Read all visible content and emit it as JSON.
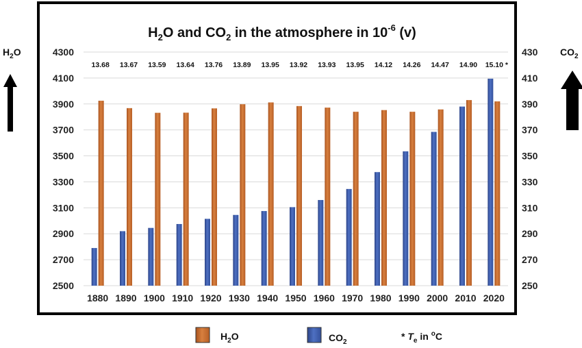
{
  "chart_data": {
    "type": "bar",
    "title": {
      "p1": "H",
      "s1": "2",
      "p2": "O and CO",
      "s2": "2",
      "p3": " in the atmosphere in 10",
      "sup": "-6",
      "p4": " (v)"
    },
    "left_axis": {
      "label_main": "H",
      "label_sub": "2",
      "label_tail": "O",
      "ylim": [
        2500,
        4300
      ],
      "ticks": [
        "2500",
        "2700",
        "2900",
        "3100",
        "3300",
        "3500",
        "3700",
        "3900",
        "4100",
        "4300"
      ]
    },
    "right_axis": {
      "label_main": "CO",
      "label_sub": "2",
      "ylim": [
        250,
        430
      ],
      "ticks": [
        "250",
        "270",
        "290",
        "310",
        "330",
        "350",
        "370",
        "390",
        "410",
        "430"
      ]
    },
    "categories": [
      "1880",
      "1890",
      "1900",
      "1910",
      "1920",
      "1930",
      "1940",
      "1950",
      "1960",
      "1970",
      "1980",
      "1990",
      "2000",
      "2010",
      "2020"
    ],
    "temperatures": [
      "13.68",
      "13.67",
      "13.59",
      "13.64",
      "13.76",
      "13.89",
      "13.95",
      "13.92",
      "13.93",
      "13.95",
      "14.12",
      "14.26",
      "14.47",
      "14.90",
      "15.10 *"
    ],
    "series": [
      {
        "name_main": "H",
        "name_sub": "2",
        "name_tail": "O",
        "axis": "left",
        "color": "#C5682B",
        "values": [
          3925,
          3868,
          3832,
          3833,
          3866,
          3898,
          3912,
          3884,
          3872,
          3840,
          3853,
          3840,
          3858,
          3930,
          3920
        ]
      },
      {
        "name_main": "CO",
        "name_sub": "2",
        "name_tail": "",
        "axis": "right",
        "color": "#3D5DAD",
        "values": [
          279,
          292,
          294.5,
          297.5,
          301.5,
          304.5,
          307.5,
          310.5,
          316,
          324.5,
          337.5,
          353.5,
          368.5,
          388,
          409.5
        ]
      }
    ],
    "note": {
      "star": "* ",
      "t": "T",
      "t_sub": "e",
      "rest": " in ",
      "deg": "o",
      "unit": "C"
    },
    "grid": true
  }
}
